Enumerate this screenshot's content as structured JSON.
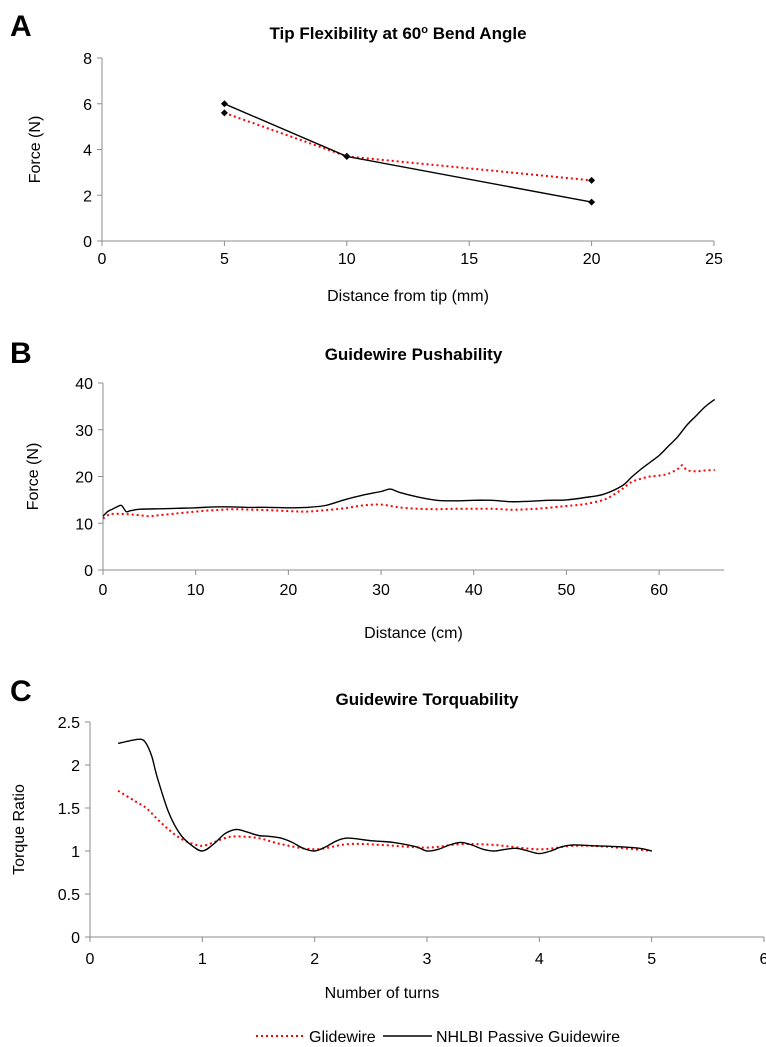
{
  "legend": {
    "glide": "Glidewire",
    "nhlbi": "NHLBI Passive Guidewire"
  },
  "colors": {
    "glide": "#ff0000",
    "nhlbi": "#000000",
    "axis": "#8c8c8c"
  },
  "chart_data": [
    {
      "panel": "A",
      "type": "line",
      "title": "Tip Flexibility at 60",
      "title_sup": "o",
      "title_tail": " Bend Angle",
      "xlabel": "Distance from tip (mm)",
      "ylabel": "Force (N)",
      "xlim": [
        0,
        25
      ],
      "ylim": [
        0,
        8
      ],
      "xticks": [
        0,
        5,
        10,
        15,
        20,
        25
      ],
      "yticks": [
        0,
        2,
        4,
        6,
        8
      ],
      "series": [
        {
          "key": "glide",
          "style": "dotted",
          "markers": true,
          "x": [
            5,
            10,
            20
          ],
          "y": [
            5.6,
            3.7,
            2.65
          ]
        },
        {
          "key": "nhlbi",
          "style": "solid",
          "markers": true,
          "x": [
            5,
            10,
            20
          ],
          "y": [
            6.0,
            3.7,
            1.7
          ]
        }
      ]
    },
    {
      "panel": "B",
      "type": "line",
      "title": "Guidewire Pushability",
      "xlabel": "Distance (cm)",
      "ylabel": "Force (N)",
      "xlim": [
        0,
        67
      ],
      "ylim": [
        0,
        40
      ],
      "xticks": [
        0,
        10,
        20,
        30,
        40,
        50,
        60
      ],
      "yticks": [
        0,
        10,
        20,
        30,
        40
      ],
      "series": [
        {
          "key": "glide",
          "style": "dotted",
          "markers": false,
          "x": [
            0,
            0.5,
            1,
            2,
            3,
            4,
            5,
            6,
            8,
            10,
            12,
            14,
            16,
            18,
            20,
            22,
            24,
            26,
            28,
            30,
            32,
            34,
            36,
            38,
            40,
            42,
            44,
            46,
            48,
            50,
            52,
            54,
            55,
            56,
            57,
            58,
            59,
            60,
            61,
            62,
            62.5,
            63,
            64,
            65,
            66
          ],
          "y": [
            11,
            11.7,
            12,
            12,
            11.9,
            11.7,
            11.5,
            11.7,
            12.1,
            12.5,
            12.8,
            13,
            12.9,
            12.8,
            12.6,
            12.5,
            12.8,
            13.2,
            13.8,
            14,
            13.4,
            13.1,
            13,
            13.1,
            13.1,
            13.1,
            12.9,
            13,
            13.3,
            13.7,
            14.1,
            15,
            16,
            17.3,
            18.8,
            19.5,
            20,
            20.2,
            20.6,
            21.6,
            22.4,
            21.4,
            21.1,
            21.3,
            21.4
          ]
        },
        {
          "key": "nhlbi",
          "style": "solid",
          "markers": false,
          "x": [
            0,
            0.5,
            1,
            1.5,
            2,
            2.5,
            3,
            4,
            6,
            8,
            10,
            12,
            14,
            16,
            18,
            20,
            22,
            24,
            26,
            28,
            30,
            31,
            32,
            34,
            36,
            38,
            40,
            42,
            44,
            46,
            48,
            50,
            52,
            54,
            56,
            57,
            58,
            59,
            60,
            61,
            62,
            63,
            64,
            65,
            66
          ],
          "y": [
            11.5,
            12.5,
            13,
            13.5,
            13.8,
            12.5,
            12.7,
            13,
            13.1,
            13.2,
            13.3,
            13.5,
            13.5,
            13.4,
            13.4,
            13.3,
            13.4,
            13.8,
            15,
            16,
            16.8,
            17.3,
            16.6,
            15.6,
            14.9,
            14.8,
            14.9,
            14.9,
            14.6,
            14.7,
            14.9,
            15,
            15.5,
            16.2,
            18,
            19.8,
            21.5,
            23,
            24.5,
            26.5,
            28.5,
            31,
            33,
            35,
            36.5
          ]
        }
      ]
    },
    {
      "panel": "C",
      "type": "line",
      "title": "Guidewire Torquability",
      "xlabel": "Number of turns",
      "ylabel": "Torque Ratio",
      "xlim": [
        0,
        6
      ],
      "ylim": [
        0,
        2.5
      ],
      "xticks": [
        0,
        1,
        2,
        3,
        4,
        5,
        6
      ],
      "yticks": [
        0,
        0.5,
        1,
        1.5,
        2,
        2.5
      ],
      "series": [
        {
          "key": "glide",
          "style": "dotted",
          "markers": false,
          "x": [
            0.25,
            0.4,
            0.5,
            0.6,
            0.7,
            0.8,
            0.9,
            1.0,
            1.1,
            1.2,
            1.3,
            1.5,
            1.7,
            2.0,
            2.3,
            2.6,
            3.0,
            3.3,
            3.6,
            4.0,
            4.3,
            4.6,
            5.0
          ],
          "y": [
            1.7,
            1.58,
            1.5,
            1.37,
            1.25,
            1.15,
            1.09,
            1.06,
            1.1,
            1.15,
            1.17,
            1.15,
            1.08,
            1.02,
            1.08,
            1.07,
            1.04,
            1.08,
            1.07,
            1.02,
            1.06,
            1.05,
            1.0
          ]
        },
        {
          "key": "nhlbi",
          "style": "solid",
          "markers": false,
          "x": [
            0.25,
            0.35,
            0.45,
            0.5,
            0.55,
            0.6,
            0.7,
            0.8,
            0.9,
            1.0,
            1.1,
            1.2,
            1.3,
            1.4,
            1.5,
            1.6,
            1.7,
            1.8,
            1.9,
            2.0,
            2.1,
            2.2,
            2.3,
            2.5,
            2.7,
            2.9,
            3.0,
            3.1,
            3.2,
            3.3,
            3.4,
            3.5,
            3.6,
            3.7,
            3.8,
            3.9,
            4.0,
            4.1,
            4.2,
            4.3,
            4.5,
            4.7,
            4.9,
            5.0
          ],
          "y": [
            2.25,
            2.28,
            2.3,
            2.25,
            2.1,
            1.85,
            1.45,
            1.2,
            1.07,
            1.0,
            1.08,
            1.2,
            1.25,
            1.22,
            1.18,
            1.17,
            1.15,
            1.1,
            1.03,
            1.0,
            1.05,
            1.12,
            1.15,
            1.12,
            1.1,
            1.05,
            1.0,
            1.02,
            1.07,
            1.1,
            1.07,
            1.02,
            1.0,
            1.02,
            1.03,
            1.0,
            0.97,
            1.0,
            1.05,
            1.07,
            1.06,
            1.05,
            1.03,
            1.0
          ]
        }
      ]
    }
  ]
}
